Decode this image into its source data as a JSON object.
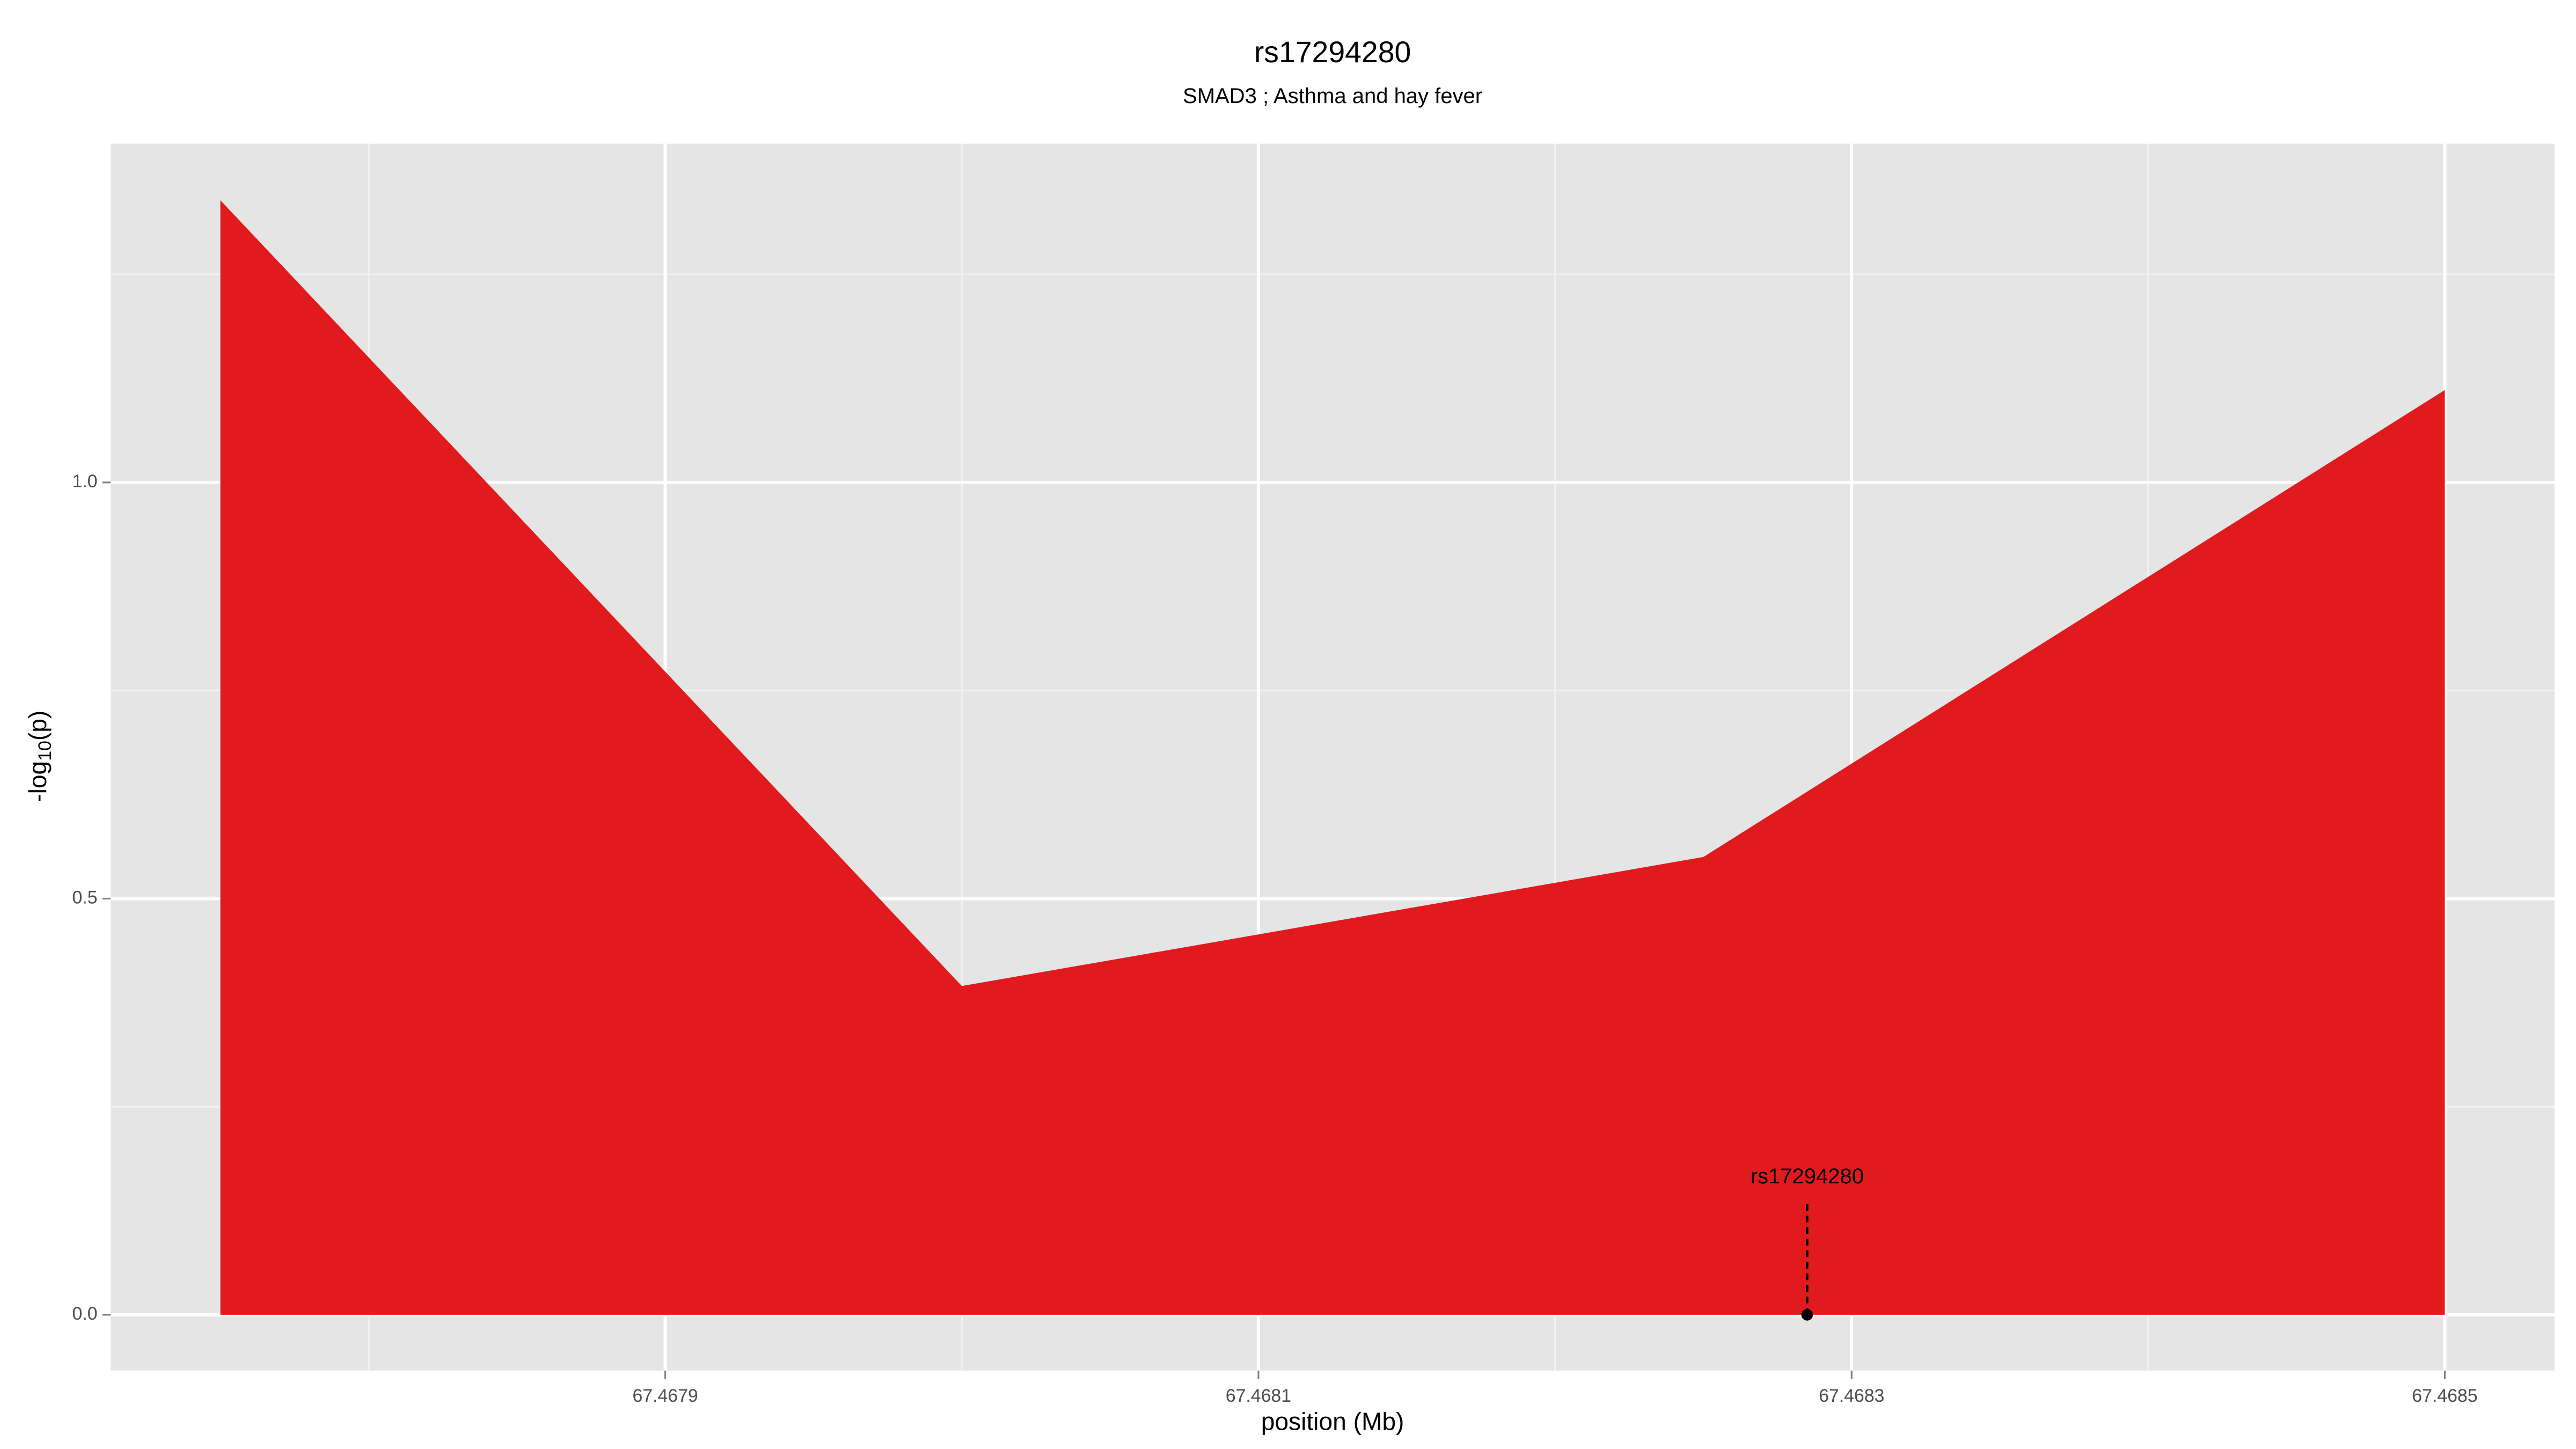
{
  "chart_data": {
    "type": "area",
    "title": "rs17294280",
    "subtitle": "SMAD3  ; Asthma and hay fever",
    "xlabel": "position (Mb)",
    "ylabel": "-log10(p)",
    "x": [
      67.46775,
      67.468,
      67.46825,
      67.4685
    ],
    "series": [
      {
        "color": "#e11b1d",
        "values": [
          1.339,
          0.395,
          0.55,
          1.111
        ]
      }
    ],
    "xlim": [
      67.467713,
      67.468537
    ],
    "ylim": [
      -0.067,
      1.407
    ],
    "xticks": [
      67.4679,
      67.4681,
      67.4683,
      67.4685
    ],
    "yticks": [
      {
        "value": 0,
        "label": "0.0"
      },
      0.5,
      {
        "value": 1,
        "label": "1.0"
      }
    ],
    "x_minor_grid": [
      67.4678,
      67.468,
      67.4682,
      67.4684
    ],
    "y_minor_grid": [
      0.25,
      0.75,
      1.25
    ],
    "grid": true,
    "annotations": [
      {
        "label": "rs17294280",
        "x": 67.468285,
        "y": 0
      }
    ]
  }
}
